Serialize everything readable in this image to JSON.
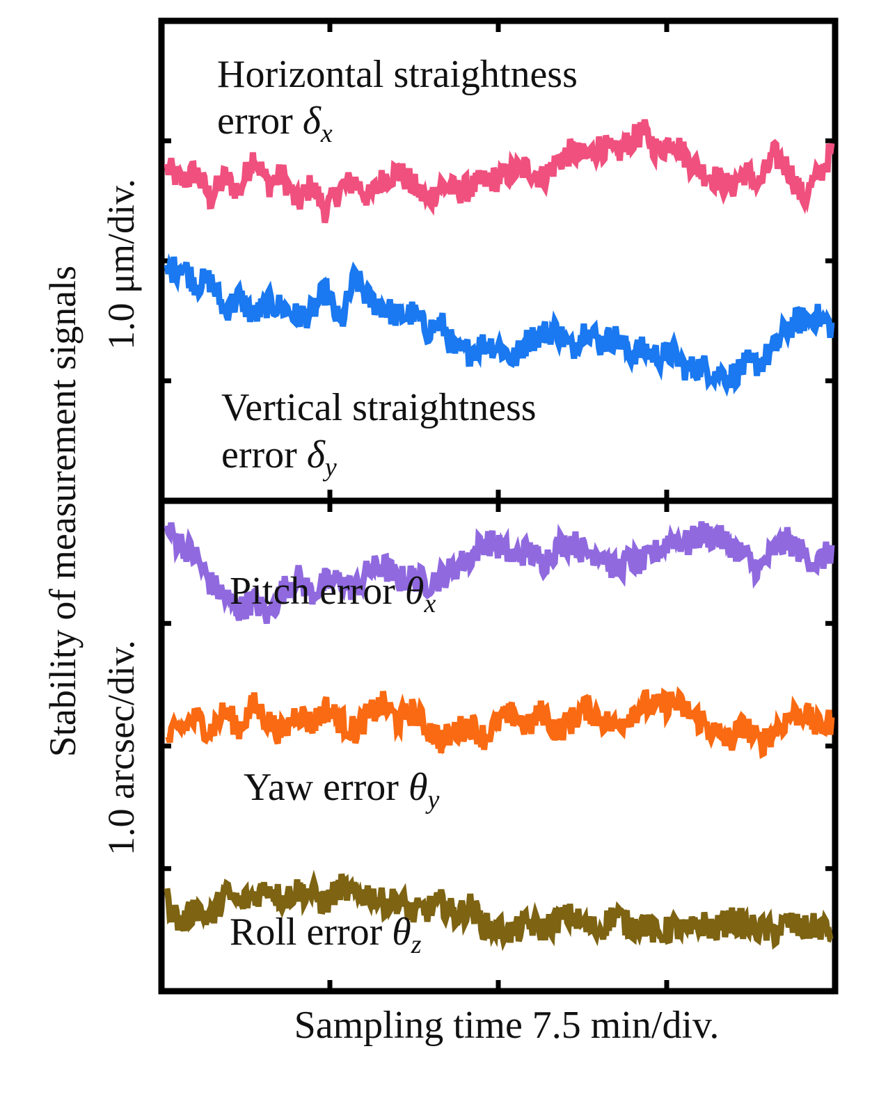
{
  "chart_data": [
    {
      "type": "line",
      "panel": "top",
      "units_label": "1.0 μm/div.",
      "xlabel": "Sampling time  7.5 min/div.",
      "x_ticks": 4,
      "y_ticks": 4,
      "grid": false,
      "series": [
        {
          "name_main": "Horizontal straightness",
          "name_sub": "error ",
          "symbol": "δ",
          "subscript": "x",
          "color": "#f0507e",
          "label_pos": "above",
          "values": [
            0.35,
            0.15,
            0.3,
            -0.1,
            0.2,
            0.0,
            0.55,
            0.1,
            0.25,
            -0.2,
            0.1,
            -0.3,
            0.05,
            0.15,
            -0.1,
            0.2,
            0.3,
            0.1,
            -0.15,
            0.1,
            0.0,
            0.05,
            0.15,
            0.2,
            0.3,
            0.35,
            0.2,
            0.45,
            0.6,
            0.5,
            0.7,
            0.55,
            0.75,
            0.9,
            0.6,
            0.8,
            0.5,
            0.3,
            0.2,
            0.05,
            0.3,
            0.1,
            0.55,
            0.35,
            -0.1,
            0.2,
            0.6
          ]
        },
        {
          "name_main": "Vertical straightness",
          "name_sub": "error ",
          "symbol": "δ",
          "subscript": "y",
          "color": "#1a78f0",
          "label_pos": "below",
          "values": [
            0.7,
            0.85,
            0.55,
            0.6,
            0.15,
            0.35,
            0.05,
            0.25,
            0.2,
            0.05,
            0.1,
            0.45,
            -0.1,
            0.65,
            0.3,
            0.2,
            0.05,
            0.1,
            -0.15,
            -0.05,
            -0.5,
            -0.45,
            -0.35,
            -0.4,
            -0.6,
            -0.3,
            -0.2,
            -0.15,
            -0.45,
            -0.1,
            -0.35,
            -0.25,
            -0.5,
            -0.45,
            -0.55,
            -0.5,
            -0.75,
            -0.7,
            -0.8,
            -0.85,
            -0.7,
            -0.65,
            -0.45,
            -0.1,
            0.0,
            0.05,
            -0.1
          ]
        }
      ]
    },
    {
      "type": "line",
      "panel": "bottom",
      "units_label": "1.0 arcsec/div.",
      "xlabel": "Sampling time  7.5 min/div.",
      "x_ticks": 4,
      "y_ticks": 4,
      "grid": false,
      "series": [
        {
          "name_main": "Pitch error ",
          "symbol": "θ",
          "subscript": "x",
          "color": "#9069df",
          "values": [
            1.5,
            1.3,
            1.1,
            0.7,
            0.5,
            0.3,
            0.45,
            0.2,
            0.6,
            0.8,
            0.55,
            0.7,
            0.75,
            0.6,
            0.9,
            0.95,
            0.75,
            0.8,
            0.7,
            0.8,
            0.95,
            1.1,
            1.35,
            1.25,
            1.1,
            1.2,
            1.0,
            1.25,
            1.35,
            1.15,
            1.2,
            0.9,
            1.05,
            1.0,
            1.2,
            1.4,
            1.3,
            1.45,
            1.4,
            1.3,
            1.1,
            0.9,
            1.2,
            1.35,
            1.15,
            1.0,
            1.2
          ]
        },
        {
          "name_main": "Yaw error ",
          "symbol": "θ",
          "subscript": "y",
          "color": "#fa6a12",
          "values": [
            0.0,
            0.2,
            0.35,
            0.15,
            0.45,
            0.2,
            0.55,
            0.3,
            0.1,
            0.45,
            0.25,
            0.5,
            0.3,
            0.15,
            0.4,
            0.55,
            0.3,
            0.45,
            0.2,
            0.0,
            0.15,
            0.25,
            0.05,
            0.3,
            0.4,
            0.2,
            0.45,
            0.15,
            0.3,
            0.5,
            0.35,
            0.2,
            0.4,
            0.55,
            0.5,
            0.6,
            0.45,
            0.3,
            0.1,
            0.0,
            0.25,
            -0.05,
            0.15,
            0.35,
            0.45,
            0.2,
            0.3
          ]
        },
        {
          "name_main": "Roll error ",
          "symbol": "θ",
          "subscript": "z",
          "color": "#7d6312",
          "values": [
            -0.3,
            -0.7,
            -0.4,
            -0.6,
            -0.2,
            -0.35,
            -0.25,
            -0.1,
            -0.3,
            -0.15,
            -0.2,
            -0.35,
            -0.1,
            -0.25,
            -0.2,
            -0.35,
            -0.3,
            -0.5,
            -0.45,
            -0.35,
            -0.55,
            -0.4,
            -0.7,
            -0.75,
            -0.8,
            -0.65,
            -0.75,
            -0.6,
            -0.55,
            -0.7,
            -0.75,
            -0.5,
            -0.7,
            -0.65,
            -0.85,
            -0.7,
            -0.8,
            -0.65,
            -0.75,
            -0.6,
            -0.7,
            -0.75,
            -0.8,
            -0.65,
            -0.75,
            -0.7,
            -0.8
          ]
        }
      ]
    }
  ],
  "figure": {
    "ylabel_main": "Stability of measurement signals",
    "xlabel": "Sampling time  7.5 min/div."
  }
}
